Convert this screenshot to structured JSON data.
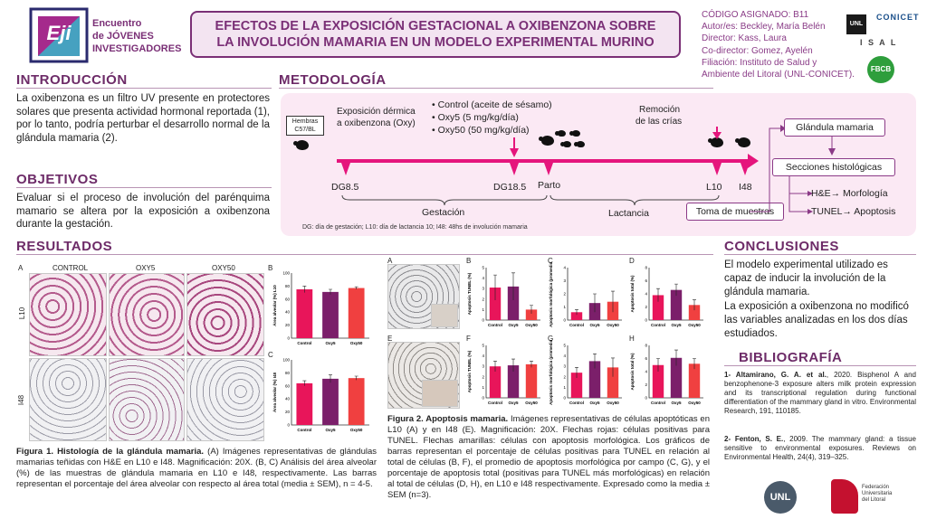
{
  "logo": {
    "symbol": "Eji",
    "line1": "Encuentro",
    "line2": "de JÓVENES",
    "line3": "INVESTIGADORES"
  },
  "title": {
    "line1": "EFECTOS DE LA EXPOSICIÓN GESTACIONAL A OXIBENZONA SOBRE",
    "line2": "LA INVOLUCIÓN MAMARIA EN UN MODELO EXPERIMENTAL MURINO"
  },
  "info": {
    "code": "CÓDIGO ASIGNADO: B11",
    "authors": "Autor/es: Beckley, María Belén",
    "director": "Director: Kass, Laura",
    "codirector": "Co-director: Gomez, Ayelén",
    "affiliation1": "Filiación: Instituto de Salud y",
    "affiliation2": "Ambiente del Litoral (UNL-CONICET)."
  },
  "logos": {
    "unl": "UNL",
    "conicet": "CONICET",
    "isal": "I S A L",
    "fbcb": "FBCB",
    "unl_big": "UNL",
    "fed1": "Federación",
    "fed2": "Universitaria",
    "fed3": "del Litoral"
  },
  "intro": {
    "heading": "INTRODUCCIÓN",
    "text": "La oxibenzona es un filtro UV presente en protectores solares que presenta actividad hormonal reportada (1), por lo tanto, podría perturbar el desarrollo normal de la glándula mamaria (2)."
  },
  "objectives": {
    "heading": "OBJETIVOS",
    "text": "Evaluar si el proceso de involución del parénquima mamario se altera por la exposición a oxibenzona durante la gestación."
  },
  "method": {
    "heading": "METODOLOGÍA",
    "females": "Hembras C57/BL",
    "exposure1": "Exposición dérmica",
    "exposure2": "a oxibenzona (Oxy)",
    "groups": [
      "• Control (aceite de sésamo)",
      "• Oxy5 (5 mg/kg/día)",
      "• Oxy50 (50 mg/kg/día)"
    ],
    "removal1": "Remoción",
    "removal2": "de las crías",
    "dg85": "DG8.5",
    "dg185": "DG18.5",
    "parto": "Parto",
    "l10": "L10",
    "i48": "I48",
    "gestacion": "Gestación",
    "lactancia": "Lactancia",
    "sampling": "Toma de muestras",
    "gland": "Glándula mamaria",
    "sections": "Secciones histológicas",
    "he": "H&E→ Morfología",
    "tunel": "TUNEL→ Apoptosis",
    "legend": "DG: día de gestación; L10: día de lactancia 10; I48: 48hs de involución mamaria"
  },
  "results": {
    "heading": "RESULTADOS",
    "fig1": {
      "panelA": "A",
      "panelB": "B",
      "panelC": "C",
      "cols": [
        "CONTROL",
        "OXY5",
        "OXY50"
      ],
      "rows": [
        "L10",
        "I48"
      ],
      "caption_bold": "Figura 1. Histología de la glándula mamaria.",
      "caption": "(A) Imágenes representativas de glándulas mamarias teñidas con H&E en L10 e I48. Magnificación: 20X. (B, C) Análisis del área alveolar (%) de las muestras de glándula mamaria en L10 e I48, respectivamente. Las barras representan el porcentaje del área alveolar con respecto al área total (media ± SEM), n = 4-5."
    },
    "fig2": {
      "panels": [
        "A",
        "B",
        "C",
        "D",
        "E",
        "F",
        "G",
        "H"
      ],
      "caption_bold": "Figura 2. Apoptosis mamaria.",
      "caption": "Imágenes representativas de células apoptóticas en L10 (A) y en I48 (E). Magnificación: 20X. Flechas rojas: células positivas para TUNEL. Flechas amarillas: células con apoptosis morfológica. Los gráficos de barras representan el porcentaje de células positivas para TUNEL en relación al total de células (B, F), el promedio de apoptosis morfológica por campo (C, G), y el porcentaje de apoptosis total (positivas para TUNEL más morfológicas) en relación al total de células (D, H), en L10 e I48 respectivamente. Expresado como la media ± SEM (n=3)."
    }
  },
  "conclusions": {
    "heading": "CONCLUSIONES",
    "p1": "El modelo experimental utilizado es capaz de inducir la involución de la glándula mamaria.",
    "p2": "La exposición a oxibenzona no modificó las variables analizadas en los dos días estudiados."
  },
  "bibliography": {
    "heading": "BIBLIOGRAFÍA",
    "ref1_author": "1- Altamirano, G. A. et al.",
    "ref1": ", 2020. Bisphenol A and benzophenone-3 exposure alters milk protein expression and its transcriptional regulation during functional differentiation of the mammary gland in vitro. Environmental Research, 191, 110185.",
    "ref2_author": "2- Fenton, S. E.",
    "ref2": ", 2009. The mammary gland: a tissue sensitive to environmental exposures. Reviews on Environmental Health, 24(4), 319–325."
  },
  "chart_data": [
    {
      "id": "fig1B",
      "type": "bar",
      "categories": [
        "Control",
        "Oxy5",
        "Oxy50"
      ],
      "values": [
        75,
        71,
        77
      ],
      "errors": [
        5,
        4,
        2
      ],
      "ylabel": "Área alveolar (%) L10",
      "ylim": [
        0,
        100
      ],
      "yticks": [
        0,
        20,
        40,
        60,
        80,
        100
      ],
      "colors": [
        "#e8155a",
        "#7b1f6a",
        "#f04040"
      ]
    },
    {
      "id": "fig1C",
      "type": "bar",
      "categories": [
        "Control",
        "Oxy5",
        "Oxy50"
      ],
      "values": [
        64,
        71,
        72
      ],
      "errors": [
        4,
        6,
        3
      ],
      "ylabel": "Área alveolar (%) I48",
      "ylim": [
        0,
        100
      ],
      "yticks": [
        0,
        20,
        40,
        60,
        80,
        100
      ],
      "colors": [
        "#e8155a",
        "#7b1f6a",
        "#f04040"
      ]
    },
    {
      "id": "fig2B",
      "type": "bar",
      "categories": [
        "Control",
        "Oxy5",
        "Oxy50"
      ],
      "values": [
        3.1,
        3.2,
        1.0
      ],
      "errors": [
        1.2,
        1.3,
        0.4
      ],
      "ylabel": "Apoptosis TUNEL (%)",
      "ylim": [
        0,
        5
      ],
      "yticks": [
        0,
        1,
        2,
        3,
        4,
        5
      ],
      "colors": [
        "#e8155a",
        "#7b1f6a",
        "#f04040"
      ]
    },
    {
      "id": "fig2C",
      "type": "bar",
      "categories": [
        "Control",
        "Oxy5",
        "Oxy50"
      ],
      "values": [
        0.6,
        1.3,
        1.4
      ],
      "errors": [
        0.2,
        0.7,
        0.8
      ],
      "ylabel": "Apoptosis morfológica (promedio)",
      "ylim": [
        0,
        4
      ],
      "yticks": [
        0,
        1,
        2,
        3,
        4
      ],
      "colors": [
        "#e8155a",
        "#7b1f6a",
        "#f04040"
      ]
    },
    {
      "id": "fig2D",
      "type": "bar",
      "categories": [
        "Control",
        "Oxy5",
        "Oxy50"
      ],
      "values": [
        3.8,
        4.6,
        2.3
      ],
      "errors": [
        1.0,
        0.9,
        0.8
      ],
      "ylabel": "Apoptosis total (%)",
      "ylim": [
        0,
        8
      ],
      "yticks": [
        0,
        2,
        4,
        6,
        8
      ],
      "colors": [
        "#e8155a",
        "#7b1f6a",
        "#f04040"
      ]
    },
    {
      "id": "fig2F",
      "type": "bar",
      "categories": [
        "Control",
        "Oxy5",
        "Oxy50"
      ],
      "values": [
        3.0,
        3.1,
        3.2
      ],
      "errors": [
        0.5,
        0.6,
        0.3
      ],
      "ylabel": "Apoptosis TUNEL (%)",
      "ylim": [
        0,
        5
      ],
      "yticks": [
        0,
        1,
        2,
        3,
        4,
        5
      ],
      "colors": [
        "#e8155a",
        "#7b1f6a",
        "#f04040"
      ]
    },
    {
      "id": "fig2G",
      "type": "bar",
      "categories": [
        "Control",
        "Oxy5",
        "Oxy50"
      ],
      "values": [
        2.4,
        3.5,
        2.9
      ],
      "errors": [
        0.5,
        0.7,
        0.9
      ],
      "ylabel": "Apoptosis morfológica (promedio)",
      "ylim": [
        0,
        5
      ],
      "yticks": [
        0,
        1,
        2,
        3,
        4,
        5
      ],
      "colors": [
        "#e8155a",
        "#7b1f6a",
        "#f04040"
      ]
    },
    {
      "id": "fig2H",
      "type": "bar",
      "categories": [
        "Control",
        "Oxy5",
        "Oxy50"
      ],
      "values": [
        5.0,
        6.1,
        5.2
      ],
      "errors": [
        1.0,
        1.2,
        0.8
      ],
      "ylabel": "Apoptosis total (%)",
      "ylim": [
        0,
        8
      ],
      "yticks": [
        0,
        2,
        4,
        6,
        8
      ],
      "colors": [
        "#e8155a",
        "#7b1f6a",
        "#f04040"
      ]
    }
  ]
}
